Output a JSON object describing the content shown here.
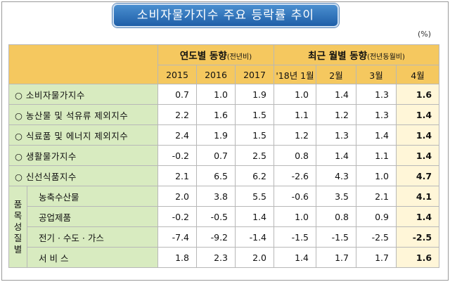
{
  "title": "소비자물가지수 주요 등락률 추이",
  "unit": "(%)",
  "header": {
    "annual_group": "연도별 동향",
    "annual_sub": "(전년비)",
    "monthly_group": "최근 월별 동향",
    "monthly_sub": "(전년동월비)",
    "columns": [
      "2015",
      "2016",
      "2017",
      "'18년 1월",
      "2월",
      "3월",
      "4월"
    ]
  },
  "rows": [
    {
      "label": "○  소비자물가지수",
      "values": [
        "0.7",
        "1.0",
        "1.9",
        "1.0",
        "1.4",
        "1.3",
        "1.6"
      ]
    },
    {
      "label": "○  농산물 및 석유류 제외지수",
      "values": [
        "2.2",
        "1.6",
        "1.5",
        "1.1",
        "1.2",
        "1.3",
        "1.4"
      ]
    },
    {
      "label": "○  식료품 및 에너지 제외지수",
      "values": [
        "2.4",
        "1.9",
        "1.5",
        "1.2",
        "1.3",
        "1.4",
        "1.4"
      ]
    },
    {
      "label": "○  생활물가지수",
      "values": [
        "-0.2",
        "0.7",
        "2.5",
        "0.8",
        "1.4",
        "1.1",
        "1.4"
      ]
    },
    {
      "label": "○  신선식품지수",
      "values": [
        "2.1",
        "6.5",
        "6.2",
        "-2.6",
        "4.3",
        "1.0",
        "4.7"
      ]
    }
  ],
  "group_label": [
    "품",
    "목",
    "성",
    "질",
    "별"
  ],
  "group_rows": [
    {
      "label": "농축수산물",
      "values": [
        "2.0",
        "3.8",
        "5.5",
        "-0.6",
        "3.5",
        "2.1",
        "4.1"
      ]
    },
    {
      "label": "공업제품",
      "values": [
        "-0.2",
        "-0.5",
        "1.4",
        "1.0",
        "0.8",
        "0.9",
        "1.4"
      ]
    },
    {
      "label": "전기 · 수도 · 가스",
      "values": [
        "-7.4",
        "-9.2",
        "-1.4",
        "-1.5",
        "-1.5",
        "-2.5",
        "-2.5"
      ]
    },
    {
      "label": "서 비 스",
      "values": [
        "1.8",
        "2.3",
        "2.0",
        "1.4",
        "1.7",
        "1.7",
        "1.6"
      ]
    }
  ]
}
